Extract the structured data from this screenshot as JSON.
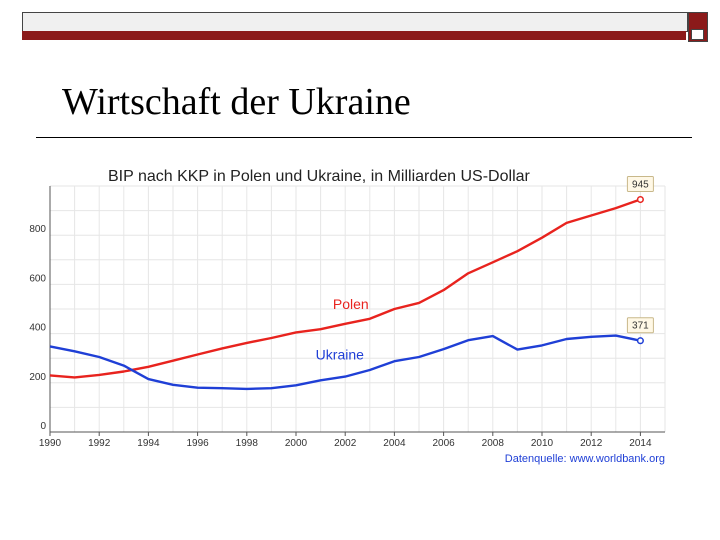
{
  "slide": {
    "title": "Wirtschaft der Ukraine"
  },
  "chart_data": {
    "type": "line",
    "title": "BIP nach KKP in Polen und Ukraine, in Milliarden US-Dollar",
    "source": "Datenquelle: www.worldbank.org",
    "x": [
      1990,
      1991,
      1992,
      1993,
      1994,
      1995,
      1996,
      1997,
      1998,
      1999,
      2000,
      2001,
      2002,
      2003,
      2004,
      2005,
      2006,
      2007,
      2008,
      2009,
      2010,
      2011,
      2012,
      2013,
      2014
    ],
    "x_ticks": [
      "1990",
      "1992",
      "1994",
      "1996",
      "1998",
      "2000",
      "2002",
      "2004",
      "2006",
      "2008",
      "2010",
      "2012",
      "2014"
    ],
    "y_ticks": [
      "0",
      "200",
      "400",
      "600",
      "800"
    ],
    "ylim": [
      0,
      1000
    ],
    "xlim": [
      1990,
      2015
    ],
    "grid": true,
    "series": [
      {
        "name": "Polen",
        "color": "#e8231e",
        "values": [
          230,
          222,
          232,
          246,
          265,
          290,
          315,
          340,
          362,
          382,
          405,
          418,
          440,
          460,
          500,
          525,
          577,
          645,
          690,
          735,
          790,
          850,
          880,
          910,
          945
        ],
        "end_label": "945"
      },
      {
        "name": "Ukraine",
        "color": "#1f3fd6",
        "values": [
          348,
          328,
          305,
          270,
          215,
          192,
          180,
          178,
          175,
          178,
          190,
          210,
          225,
          252,
          288,
          305,
          337,
          373,
          390,
          335,
          352,
          378,
          387,
          392,
          371
        ],
        "end_label": "371"
      }
    ]
  }
}
